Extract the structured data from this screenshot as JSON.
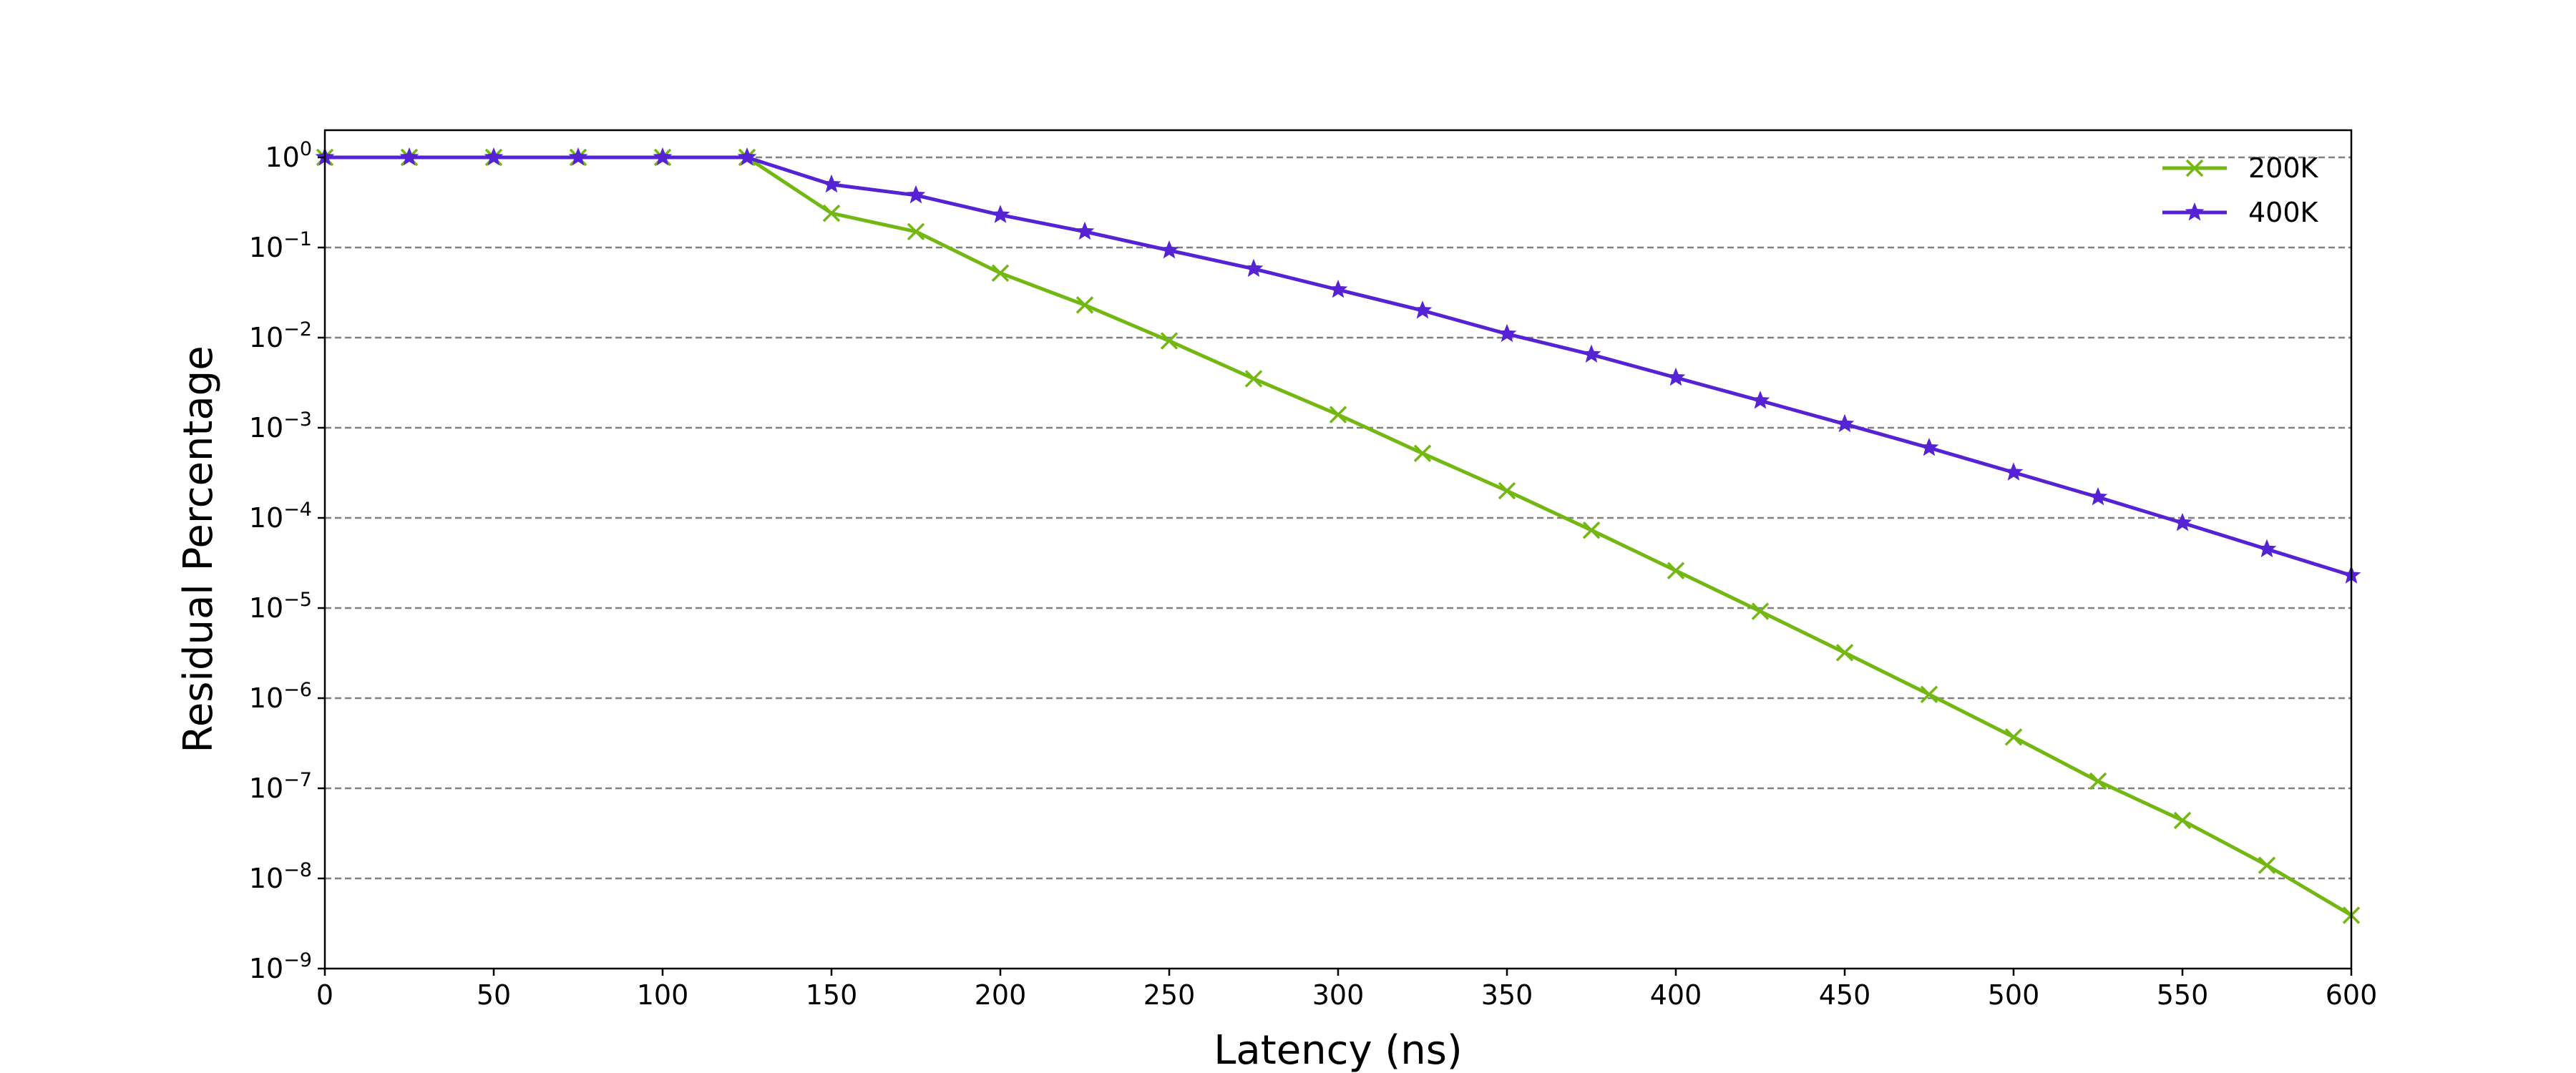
{
  "chart_data": {
    "type": "line",
    "title": "",
    "xlabel": "Latency (ns)",
    "ylabel": "Residual Percentage",
    "xlim": [
      0,
      600
    ],
    "ylim": [
      1e-09,
      2
    ],
    "yscale": "log",
    "grid": "horizontal dashed",
    "legend_position": "top-right",
    "x_ticks": [
      0,
      50,
      100,
      150,
      200,
      250,
      300,
      350,
      400,
      450,
      500,
      550,
      600
    ],
    "y_ticks": [
      {
        "base": "10",
        "exp": "0",
        "value": 1
      },
      {
        "base": "10",
        "exp": "−1",
        "value": 0.1
      },
      {
        "base": "10",
        "exp": "−2",
        "value": 0.01
      },
      {
        "base": "10",
        "exp": "−3",
        "value": 0.001
      },
      {
        "base": "10",
        "exp": "−4",
        "value": 0.0001
      },
      {
        "base": "10",
        "exp": "−5",
        "value": 1e-05
      },
      {
        "base": "10",
        "exp": "−6",
        "value": 1e-06
      },
      {
        "base": "10",
        "exp": "−7",
        "value": 1e-07
      },
      {
        "base": "10",
        "exp": "−8",
        "value": 1e-08
      },
      {
        "base": "10",
        "exp": "−9",
        "value": 1e-09
      }
    ],
    "x": [
      0,
      25,
      50,
      75,
      100,
      125,
      150,
      175,
      200,
      225,
      250,
      275,
      300,
      325,
      350,
      375,
      400,
      425,
      450,
      475,
      500,
      525,
      550,
      575,
      600
    ],
    "series": [
      {
        "name": "200K",
        "color": "#73b712",
        "marker": "x",
        "values": [
          1,
          1,
          1,
          1,
          1,
          1,
          0.24,
          0.15,
          0.052,
          0.023,
          0.0092,
          0.0035,
          0.0014,
          0.00052,
          0.0002,
          7.3e-05,
          2.6e-05,
          9.2e-06,
          3.2e-06,
          1.1e-06,
          3.7e-07,
          1.2e-07,
          4.4e-08,
          1.4e-08,
          3.9e-09
        ]
      },
      {
        "name": "400K",
        "color": "#5522d4",
        "marker": "star",
        "values": [
          1,
          1,
          1,
          1,
          1,
          1,
          0.5,
          0.38,
          0.23,
          0.15,
          0.093,
          0.058,
          0.034,
          0.02,
          0.011,
          0.0065,
          0.0036,
          0.002,
          0.0011,
          0.0006,
          0.00032,
          0.00017,
          8.8e-05,
          4.5e-05,
          2.3e-05
        ]
      }
    ]
  }
}
